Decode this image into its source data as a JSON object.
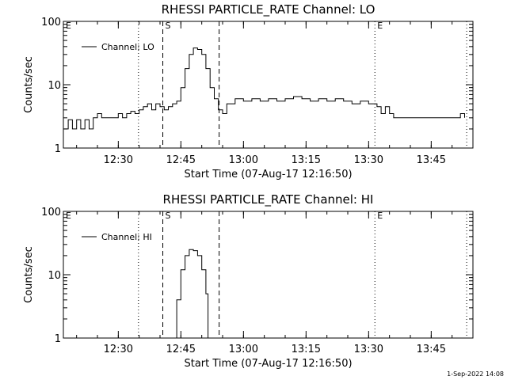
{
  "chart_data": [
    {
      "type": "line",
      "title": "RHESSI PARTICLE_RATE Channel: LO",
      "xlabel": "Start Time (07-Aug-17 12:16:50)",
      "ylabel": "Counts/sec",
      "y_scale": "log",
      "ylim": [
        1,
        100
      ],
      "y_ticks": [
        "1",
        "10",
        "100"
      ],
      "xlim": [
        "12:16:50",
        "13:55:00"
      ],
      "x_ticks": [
        "12:30",
        "12:45",
        "13:00",
        "13:15",
        "13:30",
        "13:45"
      ],
      "legend": {
        "position": "top-left",
        "entries": [
          "Channel: LO"
        ]
      },
      "markers": [
        {
          "time": "12:16:50",
          "label": "E",
          "style": "dotted"
        },
        {
          "time": "12:34:50",
          "label": "",
          "style": "dotted"
        },
        {
          "time": "12:40:40",
          "label": "S",
          "style": "dashed"
        },
        {
          "time": "12:54:10",
          "label": "",
          "style": "dashed"
        },
        {
          "time": "13:31:30",
          "label": "E",
          "style": "dotted"
        },
        {
          "time": "13:53:30",
          "label": "",
          "style": "dotted"
        }
      ],
      "series": [
        {
          "name": "Channel: LO",
          "x": [
            "12:17:00",
            "12:18:00",
            "12:19:00",
            "12:20:00",
            "12:21:00",
            "12:22:00",
            "12:23:00",
            "12:24:00",
            "12:25:00",
            "12:26:00",
            "12:27:00",
            "12:28:00",
            "12:29:00",
            "12:30:00",
            "12:31:00",
            "12:32:00",
            "12:33:00",
            "12:34:00",
            "12:35:00",
            "12:36:00",
            "12:37:00",
            "12:38:00",
            "12:39:00",
            "12:40:00",
            "12:41:00",
            "12:42:00",
            "12:43:00",
            "12:44:00",
            "12:45:00",
            "12:46:00",
            "12:47:00",
            "12:48:00",
            "12:49:00",
            "12:50:00",
            "12:51:00",
            "12:52:00",
            "12:53:00",
            "12:54:00",
            "12:55:00",
            "12:56:00",
            "12:58:00",
            "13:00:00",
            "13:02:00",
            "13:04:00",
            "13:06:00",
            "13:08:00",
            "13:10:00",
            "13:12:00",
            "13:14:00",
            "13:16:00",
            "13:18:00",
            "13:20:00",
            "13:22:00",
            "13:24:00",
            "13:26:00",
            "13:28:00",
            "13:30:00",
            "13:31:00",
            "13:32:00",
            "13:33:00",
            "13:34:00",
            "13:35:00",
            "13:36:00",
            "13:37:00",
            "13:38:00",
            "13:40:00",
            "13:42:00",
            "13:44:00",
            "13:46:00",
            "13:48:00",
            "13:50:00",
            "13:52:00",
            "13:53:00"
          ],
          "y": [
            2,
            2.8,
            2,
            2.8,
            2,
            2.8,
            2,
            3,
            3.5,
            3,
            3,
            3,
            3,
            3.5,
            3,
            3.5,
            3.8,
            3.5,
            4,
            4.5,
            5,
            4,
            5,
            4.5,
            4,
            4.5,
            5,
            5.5,
            9,
            18,
            30,
            38,
            36,
            30,
            18,
            9,
            6,
            4,
            3.5,
            5,
            6,
            5.5,
            6,
            5.5,
            6,
            5.5,
            6,
            6.5,
            6,
            5.5,
            6,
            5.5,
            6,
            5.5,
            5,
            5.5,
            5,
            5,
            4.5,
            3.5,
            4.5,
            3.5,
            3,
            3,
            3,
            3,
            3,
            3,
            3,
            3,
            3,
            3.5,
            3
          ]
        }
      ]
    },
    {
      "type": "line",
      "title": "RHESSI PARTICLE_RATE Channel: HI",
      "xlabel": "Start Time (07-Aug-17 12:16:50)",
      "ylabel": "Counts/sec",
      "y_scale": "log",
      "ylim": [
        1,
        100
      ],
      "y_ticks": [
        "1",
        "10",
        "100"
      ],
      "xlim": [
        "12:16:50",
        "13:55:00"
      ],
      "x_ticks": [
        "12:30",
        "12:45",
        "13:00",
        "13:15",
        "13:30",
        "13:45"
      ],
      "legend": {
        "position": "top-left",
        "entries": [
          "Channel: HI"
        ]
      },
      "markers": [
        {
          "time": "12:16:50",
          "label": "E",
          "style": "dotted"
        },
        {
          "time": "12:34:50",
          "label": "",
          "style": "dotted"
        },
        {
          "time": "12:40:40",
          "label": "S",
          "style": "dashed"
        },
        {
          "time": "12:54:10",
          "label": "",
          "style": "dashed"
        },
        {
          "time": "13:31:30",
          "label": "E",
          "style": "dotted"
        },
        {
          "time": "13:53:30",
          "label": "",
          "style": "dotted"
        }
      ],
      "series": [
        {
          "name": "Channel: HI",
          "x": [
            "12:43:00",
            "12:44:00",
            "12:45:00",
            "12:46:00",
            "12:47:00",
            "12:48:00",
            "12:49:00",
            "12:50:00",
            "12:51:00",
            "12:51:30"
          ],
          "y": [
            1,
            4,
            12,
            20,
            25,
            24,
            20,
            12,
            5,
            1
          ]
        }
      ]
    }
  ],
  "footer": {
    "timestamp": "1-Sep-2022 14:08"
  }
}
